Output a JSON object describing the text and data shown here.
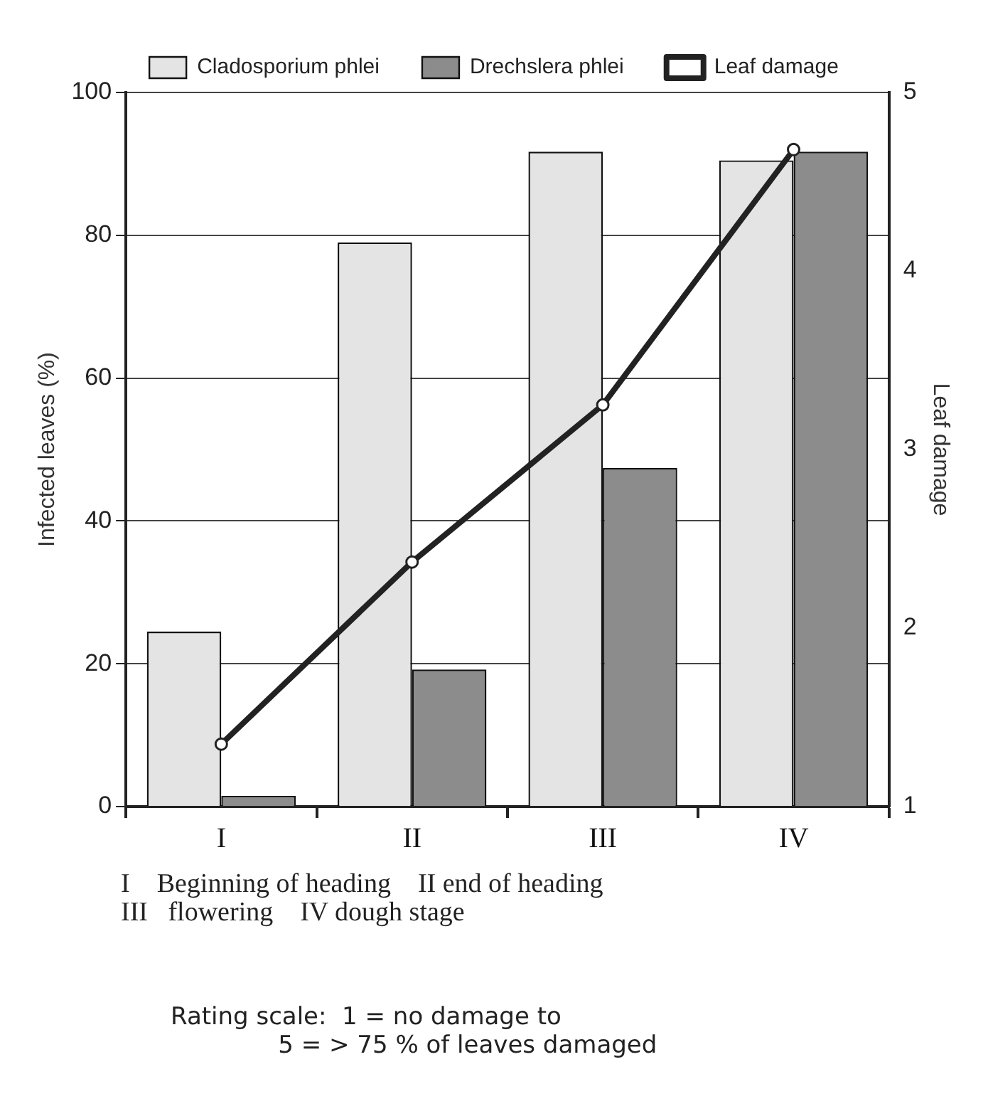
{
  "chart_data": {
    "type": "bar",
    "categories": [
      "I",
      "II",
      "III",
      "IV"
    ],
    "series": [
      {
        "name": "Cladosporium phlei",
        "color": "#e4e4e4",
        "values": [
          24.5,
          79,
          91.7,
          90.5
        ]
      },
      {
        "name": "Drechslera phlei",
        "color": "#8c8c8c",
        "values": [
          1.5,
          19.2,
          47.4,
          91.7
        ]
      },
      {
        "name": "Leaf damage",
        "type": "line",
        "axis": "y2",
        "color": "#222222",
        "values": [
          1.35,
          2.37,
          3.25,
          4.68
        ]
      }
    ],
    "ylabel": "Infected leaves (%)",
    "y2label": "Leaf damage",
    "ylim": [
      0,
      100
    ],
    "yticks": [
      0,
      20,
      40,
      60,
      80,
      100
    ],
    "y2lim": [
      1,
      5
    ],
    "y2ticks": [
      1,
      2,
      3,
      4,
      5
    ],
    "grid": "y",
    "legend": "top",
    "marker": "circle",
    "line_style": "solid",
    "annotations": [
      "I    Beginning of heading    II end of heading",
      "III   flowering    IV dough stage",
      "Rating scale:  1 = no damage to",
      "5 = > 75 % of leaves damaged"
    ]
  }
}
